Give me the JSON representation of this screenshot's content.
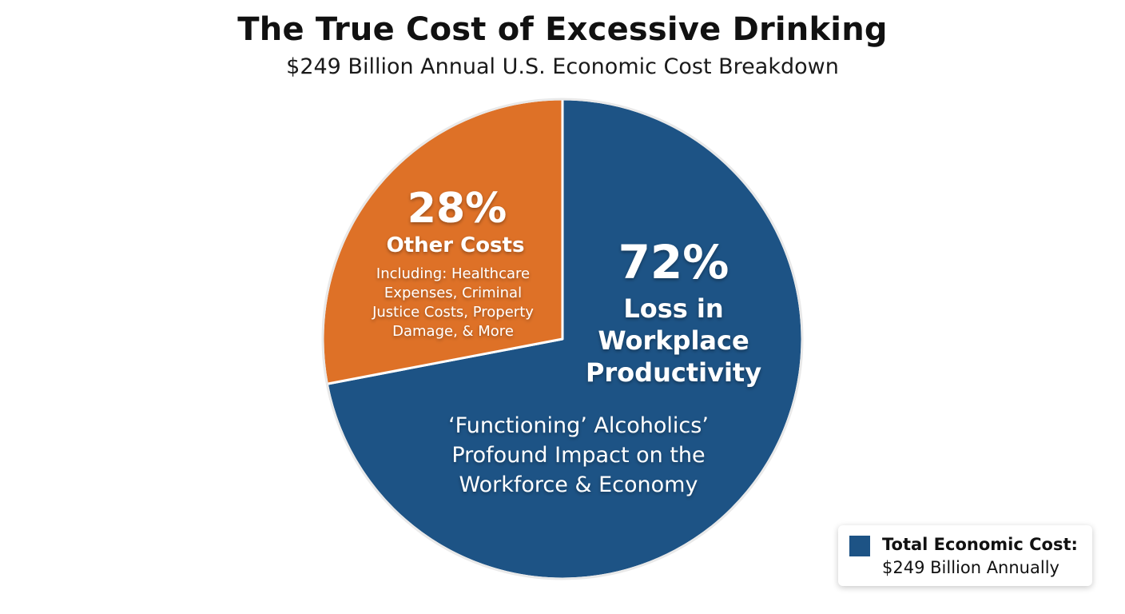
{
  "header": {
    "title": "The True Cost of Excessive Drinking",
    "subtitle": "$249 Billion Annual U.S. Economic Cost Breakdown"
  },
  "chart_data": {
    "type": "pie",
    "title": "The True Cost of Excessive Drinking",
    "subtitle": "$249 Billion Annual U.S. Economic Cost Breakdown",
    "slices": [
      {
        "percent_label": "72%",
        "value": 72,
        "label": "Loss in Workplace Productivity",
        "label_lines": [
          "Loss in",
          "Workplace",
          "Productivity"
        ],
        "description_lines": [
          "‘Functioning’ Alcoholics’",
          "Profound Impact on the",
          "Workforce & Economy"
        ],
        "color": "#1d5385"
      },
      {
        "percent_label": "28%",
        "value": 28,
        "label": "Other Costs",
        "label_lines": [
          "Other Costs"
        ],
        "description_lines": [
          "Including: Healthcare",
          "Expenses, Criminal",
          "Justice Costs, Property",
          "Damage, & More"
        ],
        "color": "#de7127"
      }
    ],
    "legend": {
      "position": "bottom-right",
      "line1": "Total Economic Cost:",
      "line2": "$249 Billion Annually",
      "color": "#1d5385"
    }
  }
}
